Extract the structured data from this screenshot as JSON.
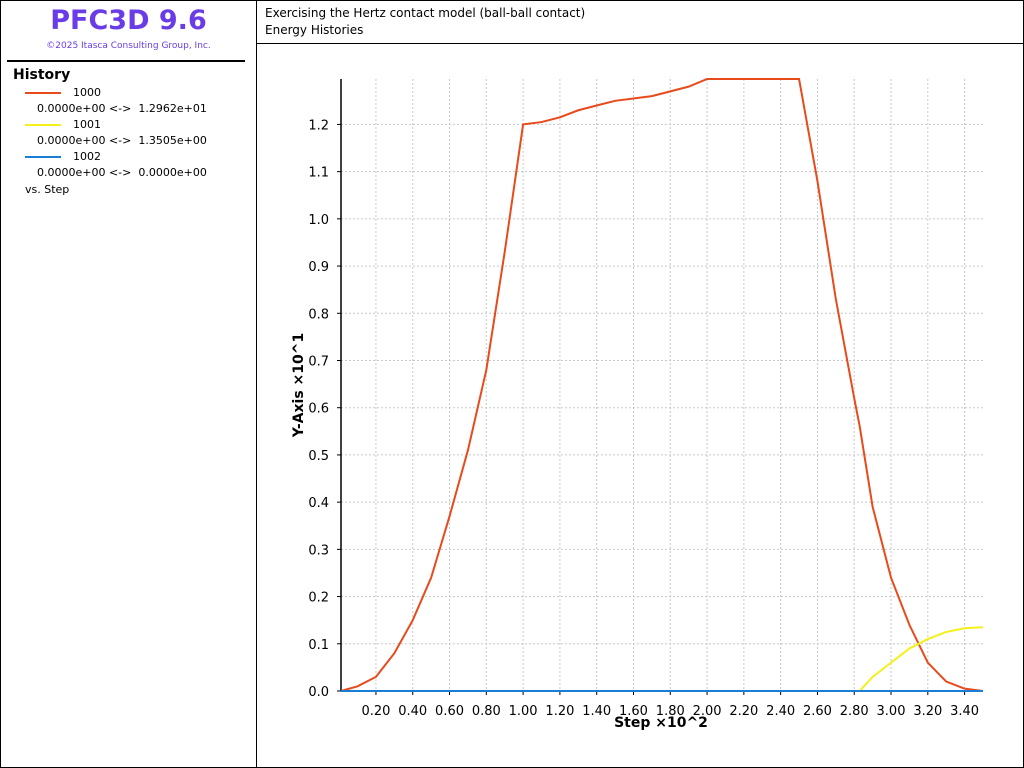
{
  "sidebar": {
    "title": "PFC3D 9.6",
    "copyright": "©2025 Itasca Consulting Group, Inc.",
    "heading": "History",
    "ranges": [
      "0.0000e+00 <->  1.2962e+01",
      "0.0000e+00 <->  1.3505e+00",
      "0.0000e+00 <->  0.0000e+00"
    ],
    "footer": "vs. Step"
  },
  "header": {
    "line1": "Exercising the Hertz contact model (ball-ball contact)",
    "line2": "Energy Histories"
  },
  "chart_data": {
    "type": "line",
    "xlabel": "Step ×10^2",
    "ylabel": "Y-Axis ×10^1",
    "grid": true,
    "x": [
      0.01,
      0.1,
      0.2,
      0.3,
      0.4,
      0.5,
      0.6,
      0.7,
      0.8,
      0.9,
      1.0,
      1.1,
      1.2,
      1.3,
      1.4,
      1.5,
      1.6,
      1.7,
      1.8,
      1.9,
      2.0,
      2.1,
      2.2,
      2.3,
      2.4,
      2.5,
      2.6,
      2.7,
      2.8,
      2.83,
      2.9,
      3.0,
      3.1,
      3.2,
      3.3,
      3.4,
      3.5
    ],
    "series": [
      {
        "name": "1000",
        "color": "#e84a1c",
        "values": [
          0,
          0.01,
          0.03,
          0.08,
          0.15,
          0.24,
          0.37,
          0.51,
          0.68,
          0.93,
          1.2,
          1.205,
          1.215,
          1.23,
          1.24,
          1.25,
          1.255,
          1.26,
          1.27,
          1.28,
          1.2962,
          1.2962,
          1.2962,
          1.2962,
          1.2962,
          1.2962,
          1.08,
          0.83,
          0.62,
          0.56,
          0.39,
          0.24,
          0.14,
          0.06,
          0.02,
          0.005,
          0
        ]
      },
      {
        "name": "1001",
        "color": "#f4f01a",
        "values": [
          0,
          0,
          0,
          0,
          0,
          0,
          0,
          0,
          0,
          0,
          0,
          0,
          0,
          0,
          0,
          0,
          0,
          0,
          0,
          0,
          0,
          0,
          0,
          0,
          0,
          0,
          0,
          0,
          0,
          0,
          0.03,
          0.06,
          0.09,
          0.11,
          0.125,
          0.133,
          0.135
        ]
      },
      {
        "name": "1002",
        "color": "#1a7fd4",
        "values": [
          0,
          0,
          0,
          0,
          0,
          0,
          0,
          0,
          0,
          0,
          0,
          0,
          0,
          0,
          0,
          0,
          0,
          0,
          0,
          0,
          0,
          0,
          0,
          0,
          0,
          0,
          0,
          0,
          0,
          0,
          0,
          0,
          0,
          0,
          0,
          0,
          0
        ]
      }
    ],
    "xlim": [
      0.01,
      3.5
    ],
    "ylim": [
      0,
      1.2962
    ],
    "xticks": [
      {
        "value": 0.2,
        "label": "0.20"
      },
      {
        "value": 0.4,
        "label": "0.40"
      },
      {
        "value": 0.6,
        "label": "0.60"
      },
      {
        "value": 0.8,
        "label": "0.80"
      },
      {
        "value": 1.0,
        "label": "1.00"
      },
      {
        "value": 1.2,
        "label": "1.20"
      },
      {
        "value": 1.4,
        "label": "1.40"
      },
      {
        "value": 1.6,
        "label": "1.60"
      },
      {
        "value": 1.8,
        "label": "1.80"
      },
      {
        "value": 2.0,
        "label": "2.00"
      },
      {
        "value": 2.2,
        "label": "2.20"
      },
      {
        "value": 2.4,
        "label": "2.40"
      },
      {
        "value": 2.6,
        "label": "2.60"
      },
      {
        "value": 2.8,
        "label": "2.80"
      },
      {
        "value": 3.0,
        "label": "3.00"
      },
      {
        "value": 3.2,
        "label": "3.20"
      },
      {
        "value": 3.4,
        "label": "3.40"
      }
    ],
    "yticks": [
      {
        "value": 0,
        "label": "0.0"
      },
      0.1,
      0.2,
      0.3,
      0.4,
      0.5,
      0.6,
      0.7,
      0.8,
      0.9,
      {
        "value": 1,
        "label": "1.0"
      },
      1.1,
      1.2
    ]
  }
}
